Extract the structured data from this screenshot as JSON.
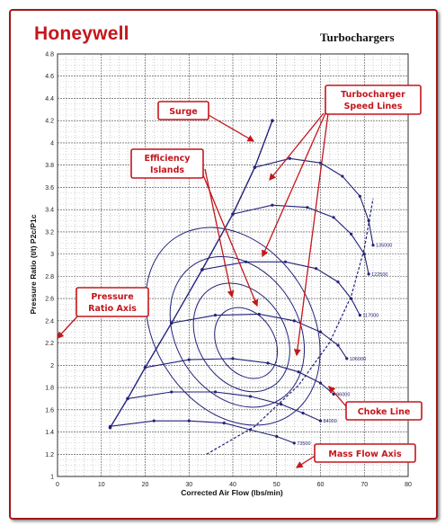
{
  "header": {
    "brand": "Honeywell",
    "title": "Turbochargers"
  },
  "chart_data": {
    "type": "line",
    "title": "Turbochargers",
    "xlabel": "Corrected Air Flow (lbs/min)",
    "ylabel": "Pressure Ratio (t/t) P2c/P1c",
    "xlim": [
      0,
      80
    ],
    "ylim": [
      1,
      4.8
    ],
    "xticks": [
      0,
      10,
      20,
      30,
      40,
      50,
      60,
      70,
      80
    ],
    "yticks": [
      1,
      1.2,
      1.4,
      1.6,
      1.8,
      2,
      2.2,
      2.4,
      2.6,
      2.8,
      3,
      3.2,
      3.4,
      3.6,
      3.8,
      4,
      4.2,
      4.4,
      4.6,
      4.8
    ],
    "grid": true,
    "line_color": "#23237a",
    "surge_line": {
      "x": [
        12,
        16,
        20,
        26,
        33,
        40,
        45,
        49
      ],
      "y": [
        1.44,
        1.7,
        1.98,
        2.38,
        2.86,
        3.36,
        3.78,
        4.2
      ]
    },
    "choke_line": {
      "x": [
        34,
        45,
        55,
        62,
        67,
        70,
        72
      ],
      "y": [
        1.2,
        1.45,
        1.82,
        2.2,
        2.62,
        3.05,
        3.5
      ]
    },
    "speed_lines": [
      {
        "label": "73500",
        "x": [
          12,
          22,
          30,
          38,
          44,
          50,
          54
        ],
        "y": [
          1.45,
          1.5,
          1.5,
          1.48,
          1.42,
          1.36,
          1.3
        ]
      },
      {
        "label": "84000",
        "x": [
          16,
          26,
          36,
          44,
          51,
          56,
          60
        ],
        "y": [
          1.7,
          1.76,
          1.76,
          1.72,
          1.65,
          1.57,
          1.5
        ]
      },
      {
        "label": "96000",
        "x": [
          20,
          30,
          40,
          48,
          55,
          60,
          63
        ],
        "y": [
          1.98,
          2.05,
          2.06,
          2.02,
          1.94,
          1.84,
          1.74
        ]
      },
      {
        "label": "106000",
        "x": [
          26,
          36,
          46,
          54,
          60,
          64,
          66
        ],
        "y": [
          2.38,
          2.45,
          2.46,
          2.4,
          2.3,
          2.18,
          2.06
        ]
      },
      {
        "label": "117000",
        "x": [
          33,
          43,
          52,
          59,
          64,
          67,
          69
        ],
        "y": [
          2.86,
          2.93,
          2.93,
          2.87,
          2.75,
          2.6,
          2.45
        ]
      },
      {
        "label": "122500",
        "x": [
          40,
          49,
          57,
          63,
          67,
          70,
          71
        ],
        "y": [
          3.36,
          3.44,
          3.42,
          3.33,
          3.18,
          3.0,
          2.82
        ]
      },
      {
        "label": "135000",
        "x": [
          45,
          53,
          60,
          65,
          69,
          71,
          72
        ],
        "y": [
          3.78,
          3.86,
          3.82,
          3.7,
          3.52,
          3.3,
          3.08
        ]
      }
    ],
    "efficiency_islands": [
      {
        "cx": 40,
        "cy": 2.35,
        "rx": 18,
        "ry": 0.95
      },
      {
        "cx": 41,
        "cy": 2.3,
        "rx": 14,
        "ry": 0.72
      },
      {
        "cx": 42,
        "cy": 2.25,
        "rx": 10,
        "ry": 0.52
      },
      {
        "cx": 43,
        "cy": 2.2,
        "rx": 6.5,
        "ry": 0.34
      }
    ]
  },
  "callouts": {
    "surge": "Surge",
    "speed_lines": [
      "Turbocharger",
      "Speed Lines"
    ],
    "efficiency": [
      "Efficiency",
      "Islands"
    ],
    "pressure_axis": [
      "Pressure",
      "Ratio Axis"
    ],
    "choke": "Choke Line",
    "mass_flow": "Mass Flow Axis"
  }
}
